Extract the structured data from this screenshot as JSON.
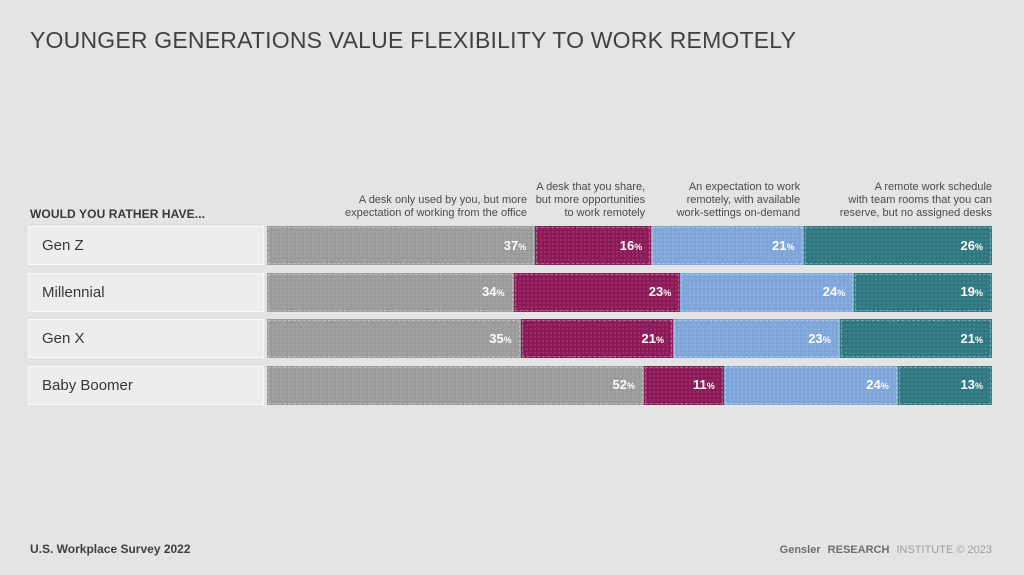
{
  "title": "YOUNGER GENERATIONS VALUE FLEXIBILITY TO WORK REMOTELY",
  "question_label": "WOULD YOU RATHER HAVE...",
  "footer": {
    "left": "U.S. Workplace Survey 2022",
    "right": {
      "brand": "Gensler",
      "bold": "RESEARCH",
      "light": "INSTITUTE © 2023"
    }
  },
  "colors": {
    "background": "#e5e4e4",
    "label_box": "#ededed",
    "gray": "#9b9b9b",
    "magenta": "#8c1a58",
    "blue": "#7ea6d9",
    "teal": "#2f7882"
  },
  "chart_data": {
    "type": "bar",
    "variant": "horizontal-stacked",
    "unit": "%",
    "title": "YOUNGER GENERATIONS VALUE FLEXIBILITY TO WORK REMOTELY",
    "categories": [
      "Gen Z",
      "Millennial",
      "Gen X",
      "Baby Boomer"
    ],
    "series": [
      {
        "name": "A desk only used by you, but more expectation of working from the office",
        "color": "#9b9b9b",
        "values": [
          37,
          34,
          35,
          52
        ]
      },
      {
        "name": "A desk that you share, but more opportunities to work remotely",
        "color": "#8c1a58",
        "values": [
          16,
          23,
          21,
          11
        ]
      },
      {
        "name": "An expectation to work remotely, with available work-settings on-demand",
        "color": "#7ea6d9",
        "values": [
          21,
          24,
          23,
          24
        ]
      },
      {
        "name": "A remote work schedule with team rooms that you can reserve, but no assigned desks",
        "color": "#2f7882",
        "values": [
          26,
          19,
          21,
          13
        ]
      }
    ],
    "column_headers": [
      {
        "text": "A desk only used by you, but more\nexpectation of working from the office",
        "right_pct": 37
      },
      {
        "text": "A desk that you share,\nbut more opportunities\nto work remotely",
        "right_pct": 53
      },
      {
        "text": "An expectation to work\nremotely, with available\nwork-settings on-demand",
        "right_pct": 74
      },
      {
        "text": "A remote work schedule\nwith team rooms that you can\nreserve, but no assigned desks",
        "right_pct": 100
      }
    ],
    "xlim": [
      0,
      100
    ],
    "legend_position": "column-headers-top",
    "grid": false
  }
}
